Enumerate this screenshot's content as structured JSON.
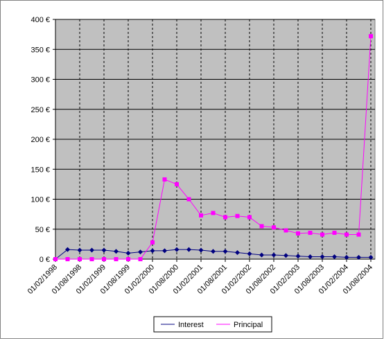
{
  "chart_data": {
    "type": "line",
    "categories": [
      "01/02/1998",
      null,
      "01/08/1998",
      null,
      "01/02/1999",
      null,
      "01/08/1999",
      null,
      "01/02/2000",
      null,
      "01/08/2000",
      null,
      "01/02/2001",
      null,
      "01/08/2001",
      null,
      "01/02/2002",
      null,
      "01/08/2002",
      null,
      "01/02/2003",
      null,
      "01/08/2003",
      null,
      "01/02/2004",
      null,
      "01/08/2004"
    ],
    "series": [
      {
        "name": "Interest",
        "color": "#000080",
        "marker": "diamond",
        "values": [
          0,
          16,
          15,
          15,
          15,
          13,
          10,
          12,
          14,
          14,
          16,
          16,
          15,
          13,
          13,
          11,
          9,
          7,
          7,
          6,
          5,
          4,
          4,
          4,
          3,
          3,
          3
        ]
      },
      {
        "name": "Principal",
        "color": "#ff00ff",
        "marker": "square",
        "values": [
          0,
          0,
          0,
          0,
          0,
          0,
          0,
          0,
          28,
          133,
          125,
          100,
          73,
          77,
          70,
          72,
          70,
          55,
          53,
          48,
          43,
          44,
          41,
          44,
          41,
          41,
          372
        ]
      }
    ],
    "ylim": [
      0,
      400
    ],
    "yticks": [
      {
        "value": 0,
        "label": "0 €"
      },
      {
        "value": 50,
        "label": "50 €"
      },
      {
        "value": 100,
        "label": "100 €"
      },
      {
        "value": 150,
        "label": "150 €"
      },
      {
        "value": 200,
        "label": "200 €"
      },
      {
        "value": 250,
        "label": "250 €"
      },
      {
        "value": 300,
        "label": "300 €"
      },
      {
        "value": 350,
        "label": "350 €"
      },
      {
        "value": 400,
        "label": "400 €"
      }
    ],
    "grid": true,
    "legend": "bottom"
  }
}
